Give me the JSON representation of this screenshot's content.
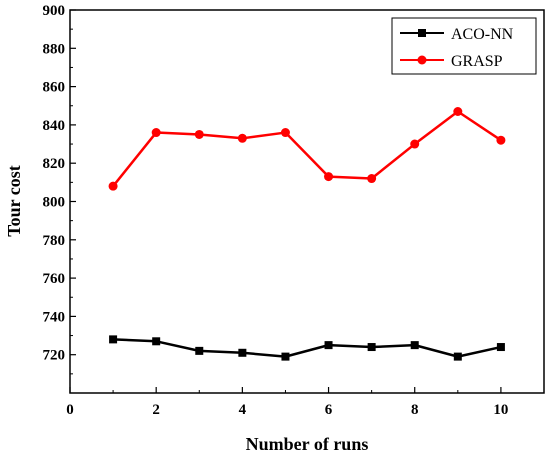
{
  "chart_data": {
    "type": "line",
    "xlabel": "Number of runs",
    "ylabel": "Tour cost",
    "xlim": [
      0,
      11
    ],
    "ylim": [
      700,
      900
    ],
    "x_ticks": [
      0,
      2,
      4,
      6,
      8,
      10
    ],
    "y_ticks": [
      720,
      740,
      760,
      780,
      800,
      820,
      840,
      860,
      880,
      900
    ],
    "x": [
      1,
      2,
      3,
      4,
      5,
      6,
      7,
      8,
      9,
      10
    ],
    "series": [
      {
        "name": "ACO-NN",
        "color": "#000000",
        "marker": "square",
        "values": [
          728,
          727,
          722,
          721,
          719,
          725,
          724,
          725,
          719,
          724
        ]
      },
      {
        "name": "GRASP",
        "color": "#ff0000",
        "marker": "circle",
        "values": [
          808,
          836,
          835,
          833,
          836,
          813,
          812,
          830,
          847,
          832
        ]
      }
    ],
    "legend_position": "top-right",
    "grid": false
  }
}
